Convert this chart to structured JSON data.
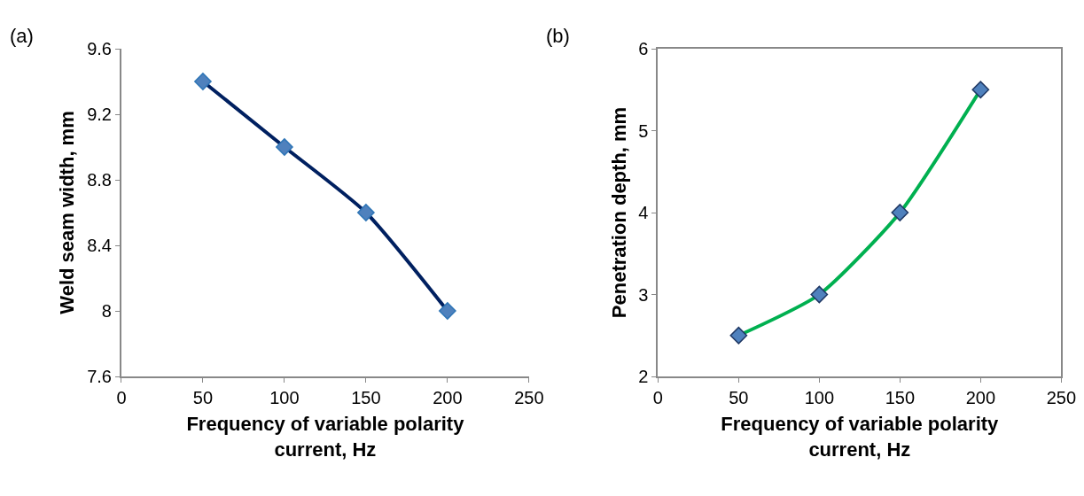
{
  "chart_data": [
    {
      "type": "line",
      "annotations": [
        "(a)"
      ],
      "xlabel": "Frequency of variable polarity current, Hz",
      "ylabel": "Weld seam width, mm",
      "x": [
        50,
        100,
        150,
        200
      ],
      "series": [
        {
          "color": "#002060",
          "values": [
            9.4,
            9.0,
            8.6,
            8.0
          ]
        }
      ],
      "xlim": [
        0,
        250
      ],
      "xticks": [
        0,
        50,
        100,
        150,
        200,
        250
      ],
      "ylim": [
        7.6,
        9.6
      ],
      "yticks": [
        7.6,
        8.0,
        8.4,
        8.8,
        9.2,
        9.6
      ],
      "marker": "diamond",
      "line_style": "solid",
      "grid": false
    },
    {
      "type": "line",
      "annotations": [
        "(b)"
      ],
      "xlabel": "Frequency of variable polarity current, Hz",
      "ylabel": "Penetration depth, mm",
      "x": [
        50,
        100,
        150,
        200
      ],
      "series": [
        {
          "color": "#00b050",
          "values": [
            2.5,
            3,
            4,
            5.5
          ]
        }
      ],
      "xlim": [
        0,
        250
      ],
      "xticks": [
        0,
        50,
        100,
        150,
        200,
        250
      ],
      "ylim": [
        2,
        6
      ],
      "yticks": [
        2,
        3,
        4,
        5,
        6
      ],
      "marker": "diamond",
      "line_style": "solid",
      "grid": false
    }
  ]
}
